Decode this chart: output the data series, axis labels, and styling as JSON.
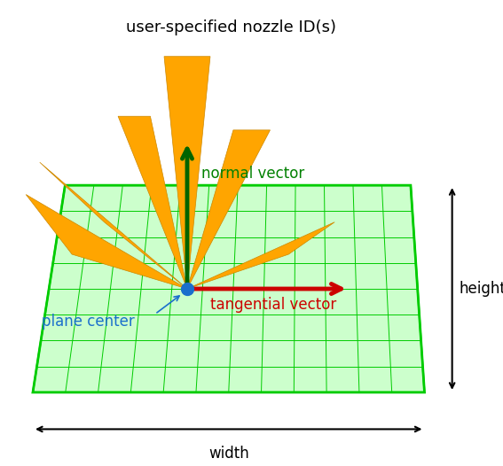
{
  "bg_color": "#ffffff",
  "grid_color": "#00cc00",
  "grid_face": "#ccffcc",
  "orange_color": "#FFA500",
  "dark_green": "#006400",
  "red_color": "#cc0000",
  "blue_dot": "#1a6fcc",
  "arrow_gray": "#333333",
  "title_text": "user-specified nozzle ID(s)",
  "normal_label": "normal vector",
  "tangential_label": "tangential vector",
  "plane_center_label": "plane center",
  "width_label": "width",
  "height_label": "height",
  "title_fontsize": 13,
  "label_fontsize": 12
}
